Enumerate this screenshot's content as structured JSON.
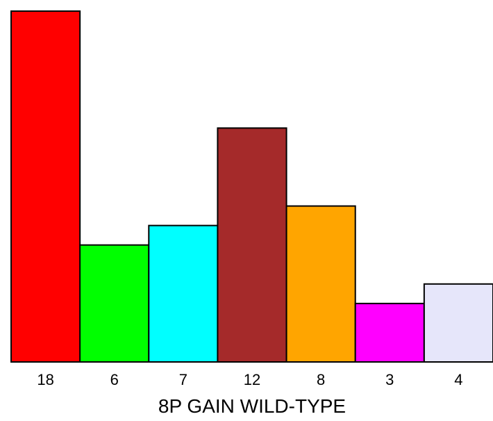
{
  "chart_data": {
    "type": "bar",
    "categories": [
      "18",
      "6",
      "7",
      "12",
      "8",
      "3",
      "4"
    ],
    "values": [
      18,
      6,
      7,
      12,
      8,
      3,
      4
    ],
    "colors": [
      "#ff0000",
      "#00ff00",
      "#00ffff",
      "#a52a2a",
      "#ffa500",
      "#ff00ff",
      "#e6e6fa"
    ],
    "xlabel": "8P GAIN WILD-TYPE",
    "ylabel": "",
    "title": "",
    "ylim": [
      0,
      18
    ],
    "grid": false,
    "legend": "none"
  }
}
